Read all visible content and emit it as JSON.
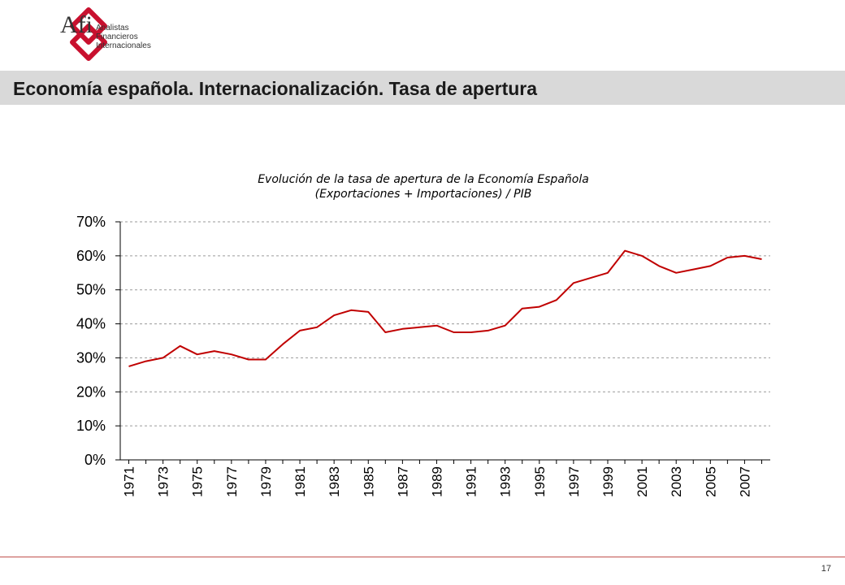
{
  "brand": {
    "name": "Afi",
    "subtitle_lines": [
      "Analistas",
      "Financieros",
      "Internacionales"
    ],
    "logo_color": "#c8102e"
  },
  "slide_title": "Economía española. Internacionalización. Tasa de apertura",
  "page_number": "17",
  "chart_data": {
    "type": "line",
    "title": "Evolución de la tasa de apertura de la Economía Española",
    "subtitle": "(Exportaciones + Importaciones) / PIB",
    "xlabel": "",
    "ylabel": "",
    "ylim": [
      0,
      70
    ],
    "y_ticks": [
      "0%",
      "10%",
      "20%",
      "30%",
      "40%",
      "50%",
      "60%",
      "70%"
    ],
    "y_tick_values": [
      0,
      10,
      20,
      30,
      40,
      50,
      60,
      70
    ],
    "x": [
      1971,
      1972,
      1973,
      1974,
      1975,
      1976,
      1977,
      1978,
      1979,
      1980,
      1981,
      1982,
      1983,
      1984,
      1985,
      1986,
      1987,
      1988,
      1989,
      1990,
      1991,
      1992,
      1993,
      1994,
      1995,
      1996,
      1997,
      1998,
      1999,
      2000,
      2001,
      2002,
      2003,
      2004,
      2005,
      2006,
      2007,
      2008
    ],
    "x_tick_labels": [
      "1971",
      "1973",
      "1975",
      "1977",
      "1979",
      "1981",
      "1983",
      "1985",
      "1987",
      "1989",
      "1991",
      "1993",
      "1995",
      "1997",
      "1999",
      "2001",
      "2003",
      "2005",
      "2007"
    ],
    "grid": true,
    "series": [
      {
        "color": "#c00000",
        "values": [
          27.5,
          29,
          30,
          33.5,
          31,
          32,
          31,
          29.5,
          29.5,
          34,
          38,
          39,
          42.5,
          44,
          43.5,
          37.5,
          38.5,
          39,
          39.5,
          37.5,
          37.5,
          38,
          39.5,
          44.5,
          45,
          47,
          52,
          53.5,
          55,
          61.5,
          60,
          57,
          55,
          56,
          57,
          59.5,
          60,
          59
        ]
      }
    ]
  }
}
